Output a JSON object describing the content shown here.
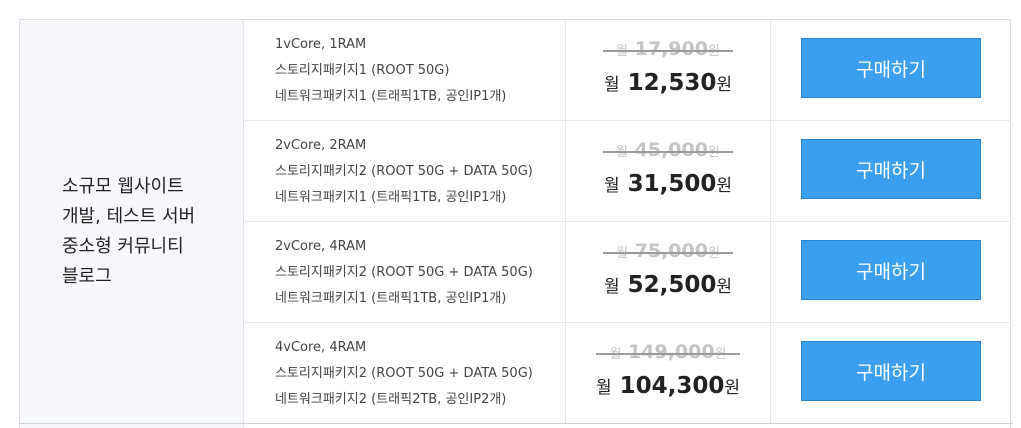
{
  "category": {
    "lines": [
      "소규모 웹사이트",
      "개발, 테스트 서버",
      "중소형 커뮤니티",
      "블로그"
    ]
  },
  "plans": [
    {
      "cpu_ram": "1vCore, 1RAM",
      "storage": "스토리지패키지1 (ROOT 50G)",
      "network": "네트워크패키지1 (트래픽1TB, 공인IP1개)",
      "original_prefix": "월",
      "original_price": "17,900",
      "original_unit": "원",
      "sale_prefix": "월",
      "sale_price": "12,530",
      "sale_unit": "원",
      "buy_label": "구매하기"
    },
    {
      "cpu_ram": "2vCore, 2RAM",
      "storage": "스토리지패키지2 (ROOT 50G + DATA 50G)",
      "network": "네트워크패키지1 (트래픽1TB, 공인IP1개)",
      "original_prefix": "월",
      "original_price": "45,000",
      "original_unit": "원",
      "sale_prefix": "월",
      "sale_price": "31,500",
      "sale_unit": "원",
      "buy_label": "구매하기"
    },
    {
      "cpu_ram": "2vCore, 4RAM",
      "storage": "스토리지패키지2 (ROOT 50G + DATA 50G)",
      "network": "네트워크패키지1 (트래픽1TB, 공인IP1개)",
      "original_prefix": "월",
      "original_price": "75,000",
      "original_unit": "원",
      "sale_prefix": "월",
      "sale_price": "52,500",
      "sale_unit": "원",
      "buy_label": "구매하기"
    },
    {
      "cpu_ram": "4vCore, 4RAM",
      "storage": "스토리지패키지2 (ROOT 50G + DATA 50G)",
      "network": "네트워크패키지2 (트래픽2TB, 공인IP2개)",
      "original_prefix": "월",
      "original_price": "149,000",
      "original_unit": "원",
      "sale_prefix": "월",
      "sale_price": "104,300",
      "sale_unit": "원",
      "buy_label": "구매하기"
    }
  ],
  "colors": {
    "button": "#3b9ff0",
    "category_bg": "#f6f8fb",
    "strike_price": "#c4c4c4"
  }
}
